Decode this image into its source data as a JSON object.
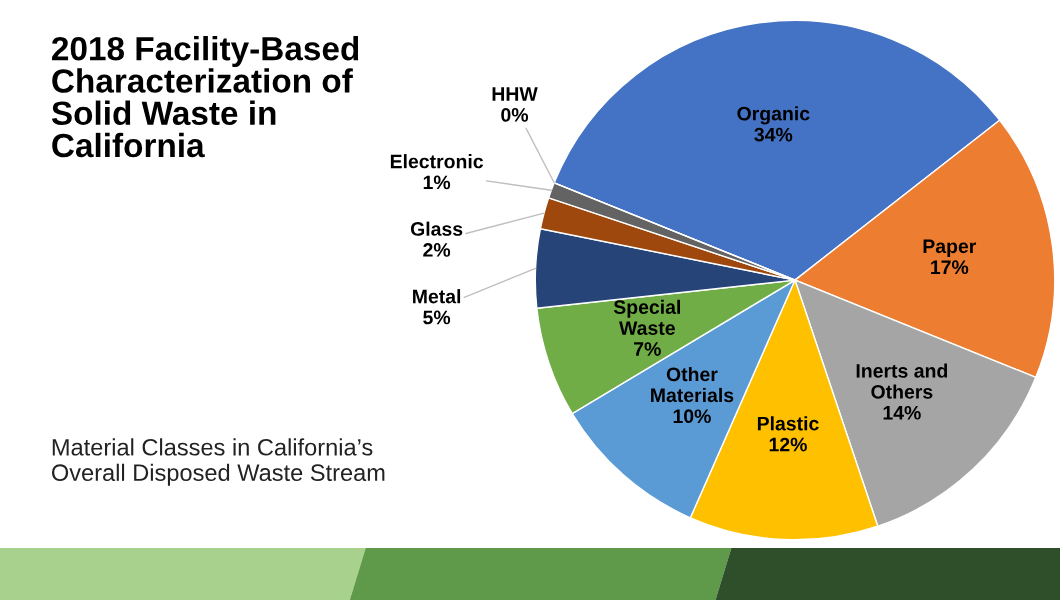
{
  "chart_data": {
    "type": "pie",
    "title": "2018 Facility-Based Characterization of Solid Waste in California",
    "annotations": [
      "Material Classes in California’s Overall Disposed Waste Stream"
    ],
    "categories": [
      "Organic",
      "Paper",
      "Inerts and Others",
      "Plastic",
      "Other Materials",
      "Special Waste",
      "Metal",
      "Glass",
      "Electronic",
      "HHW"
    ],
    "values": [
      34,
      17,
      14,
      12,
      10,
      7,
      5,
      2,
      1,
      0
    ],
    "colors": [
      "#4472c4",
      "#ed7d31",
      "#a5a5a5",
      "#ffc000",
      "#5b9bd5",
      "#70ad47",
      "#264478",
      "#9e480e",
      "#636363",
      "#c9a227"
    ],
    "value_labels": [
      "34%",
      "17%",
      "14%",
      "12%",
      "10%",
      "7%",
      "5%",
      "2%",
      "1%",
      "0%"
    ]
  }
}
